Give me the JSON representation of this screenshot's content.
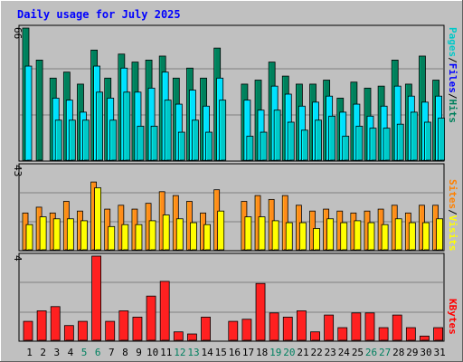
{
  "chart_data": [
    {
      "type": "bar",
      "title": "Daily usage for July 2025",
      "panel": "hits-files-pages",
      "max_label": "66",
      "ylim": [
        0,
        66
      ],
      "grid": true,
      "categories": [
        "1",
        "2",
        "3",
        "4",
        "5",
        "6",
        "7",
        "8",
        "9",
        "10",
        "11",
        "12",
        "13",
        "14",
        "15",
        "16",
        "17",
        "18",
        "19",
        "20",
        "21",
        "22",
        "23",
        "24",
        "25",
        "26",
        "27",
        "28",
        "29",
        "30",
        "31"
      ],
      "weekend_days": [
        "5",
        "6",
        "12",
        "13",
        "19",
        "20",
        "26",
        "27"
      ],
      "legend": [
        {
          "label": "Pages",
          "color": "#00c8c8"
        },
        {
          "label": "Files",
          "color": "#0000ff"
        },
        {
          "label": "Hits",
          "color": "#00805c"
        }
      ],
      "series": [
        {
          "name": "Hits",
          "color": "#00805c",
          "values": [
            66,
            50,
            41,
            44,
            38,
            55,
            41,
            53,
            49,
            50,
            52,
            41,
            46,
            41,
            56,
            0,
            38,
            40,
            49,
            42,
            38,
            38,
            40,
            31,
            39,
            36,
            37,
            50,
            38,
            52,
            40
          ]
        },
        {
          "name": "Files",
          "color": "#00e0ff",
          "values": [
            47,
            0,
            31,
            30,
            24,
            47,
            31,
            46,
            34,
            36,
            44,
            28,
            35,
            27,
            41,
            0,
            30,
            25,
            37,
            33,
            27,
            29,
            32,
            24,
            28,
            22,
            27,
            37,
            32,
            29,
            32
          ]
        },
        {
          "name": "Pages",
          "color": "#00c8c8",
          "values": [
            0,
            0,
            20,
            20,
            20,
            34,
            20,
            34,
            17,
            17,
            30,
            14,
            20,
            14,
            30,
            0,
            12,
            14,
            25,
            19,
            15,
            20,
            22,
            12,
            17,
            16,
            16,
            18,
            24,
            19,
            21
          ]
        }
      ]
    },
    {
      "type": "bar",
      "panel": "visits-sites",
      "max_label": "43",
      "ylim": [
        0,
        43
      ],
      "grid": true,
      "categories": [
        "1",
        "2",
        "3",
        "4",
        "5",
        "6",
        "7",
        "8",
        "9",
        "10",
        "11",
        "12",
        "13",
        "14",
        "15",
        "16",
        "17",
        "18",
        "19",
        "20",
        "21",
        "22",
        "23",
        "24",
        "25",
        "26",
        "27",
        "28",
        "29",
        "30",
        "31"
      ],
      "legend": [
        {
          "label": "Sites",
          "color": "#ff8000"
        },
        {
          "label": "Visits",
          "color": "#ffff00"
        }
      ],
      "series": [
        {
          "name": "Visits",
          "color": "#ff8c1a",
          "values": [
            19,
            22,
            19,
            25,
            20,
            35,
            21,
            23,
            21,
            24,
            30,
            28,
            25,
            19,
            31,
            0,
            25,
            28,
            26,
            28,
            23,
            20,
            21,
            20,
            19,
            20,
            21,
            23,
            19,
            23,
            23
          ]
        },
        {
          "name": "Sites",
          "color": "#ffff00",
          "values": [
            13,
            17,
            16,
            16,
            15,
            32,
            12,
            13,
            13,
            15,
            18,
            16,
            14,
            13,
            20,
            0,
            17,
            17,
            15,
            14,
            14,
            11,
            16,
            14,
            15,
            14,
            13,
            16,
            14,
            14,
            16
          ]
        }
      ]
    },
    {
      "type": "bar",
      "panel": "kbytes",
      "max_label": "4",
      "ylim": [
        0,
        4
      ],
      "grid": true,
      "categories": [
        "1",
        "2",
        "3",
        "4",
        "5",
        "6",
        "7",
        "8",
        "9",
        "10",
        "11",
        "12",
        "13",
        "14",
        "15",
        "16",
        "17",
        "18",
        "19",
        "20",
        "21",
        "22",
        "23",
        "24",
        "25",
        "26",
        "27",
        "28",
        "29",
        "30",
        "31"
      ],
      "legend": [
        {
          "label": "KBytes",
          "color": "#ff0000"
        }
      ],
      "series": [
        {
          "name": "KBytes",
          "color": "#ff2020",
          "values": [
            0.9,
            1.4,
            1.6,
            0.7,
            0.9,
            4.0,
            0.9,
            1.4,
            1.1,
            2.1,
            2.8,
            0.4,
            0.3,
            1.1,
            0,
            0.9,
            1.0,
            2.7,
            1.3,
            1.1,
            1.4,
            0.4,
            1.2,
            0.6,
            1.3,
            1.3,
            0.6,
            1.2,
            0.6,
            0.2,
            0.6
          ]
        }
      ]
    }
  ]
}
